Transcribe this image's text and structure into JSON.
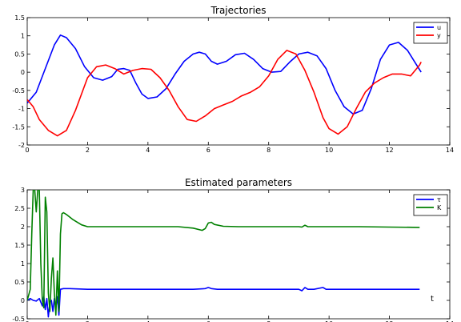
{
  "chart_data": [
    {
      "type": "line",
      "title": "Trajectories",
      "xlabel": "",
      "ylabel": "",
      "xlim": [
        0,
        14
      ],
      "ylim": [
        -2,
        1.5
      ],
      "xticks": [
        "0",
        "2",
        "4",
        "6",
        "8",
        "10",
        "12",
        "14"
      ],
      "yticks": [
        "-2",
        "-1.5",
        "-1",
        "-0.5",
        "0",
        "0.5",
        "1",
        "1.5"
      ],
      "grid": false,
      "legend": "top-right",
      "series": [
        {
          "name": "u",
          "color": "#0000ff",
          "x": [
            0,
            0.3,
            0.6,
            0.9,
            1.1,
            1.3,
            1.6,
            1.9,
            2.2,
            2.5,
            2.8,
            3.0,
            3.2,
            3.4,
            3.6,
            3.8,
            4.0,
            4.3,
            4.6,
            4.9,
            5.2,
            5.5,
            5.7,
            5.9,
            6.1,
            6.3,
            6.6,
            6.9,
            7.2,
            7.5,
            7.8,
            8.1,
            8.4,
            8.7,
            9.0,
            9.3,
            9.6,
            9.9,
            10.2,
            10.5,
            10.8,
            11.1,
            11.4,
            11.7,
            12.0,
            12.3,
            12.6,
            12.9,
            13.05
          ],
          "y": [
            -0.85,
            -0.55,
            0.1,
            0.75,
            1.02,
            0.95,
            0.65,
            0.15,
            -0.15,
            -0.22,
            -0.12,
            0.08,
            0.1,
            0.05,
            -0.3,
            -0.6,
            -0.72,
            -0.68,
            -0.45,
            -0.05,
            0.3,
            0.5,
            0.55,
            0.5,
            0.3,
            0.22,
            0.3,
            0.48,
            0.52,
            0.35,
            0.1,
            0.0,
            0.02,
            0.28,
            0.5,
            0.55,
            0.45,
            0.1,
            -0.5,
            -0.95,
            -1.15,
            -1.05,
            -0.45,
            0.35,
            0.75,
            0.82,
            0.6,
            0.2,
            0.0
          ]
        },
        {
          "name": "y",
          "color": "#ff0000",
          "x": [
            0,
            0.2,
            0.4,
            0.7,
            1.0,
            1.3,
            1.6,
            2.0,
            2.3,
            2.6,
            2.9,
            3.2,
            3.5,
            3.8,
            4.1,
            4.4,
            4.7,
            5.0,
            5.3,
            5.6,
            5.9,
            6.2,
            6.5,
            6.8,
            7.1,
            7.4,
            7.7,
            8.0,
            8.3,
            8.6,
            8.9,
            9.2,
            9.5,
            9.8,
            10.0,
            10.3,
            10.6,
            10.9,
            11.2,
            11.5,
            11.8,
            12.1,
            12.4,
            12.7,
            13.0,
            13.05
          ],
          "y": [
            -0.75,
            -0.95,
            -1.3,
            -1.6,
            -1.75,
            -1.6,
            -1.05,
            -0.15,
            0.15,
            0.2,
            0.1,
            -0.05,
            0.05,
            0.1,
            0.08,
            -0.15,
            -0.5,
            -0.95,
            -1.3,
            -1.35,
            -1.2,
            -1.0,
            -0.9,
            -0.8,
            -0.65,
            -0.55,
            -0.4,
            -0.1,
            0.35,
            0.6,
            0.5,
            0.05,
            -0.55,
            -1.25,
            -1.55,
            -1.7,
            -1.5,
            -1.0,
            -0.55,
            -0.3,
            -0.15,
            -0.05,
            -0.05,
            -0.1,
            0.2,
            0.28
          ]
        }
      ]
    },
    {
      "type": "line",
      "title": "Estimated parameters",
      "xlabel": "",
      "ylabel": "",
      "xlim": [
        0,
        14
      ],
      "ylim": [
        -0.5,
        3
      ],
      "xticks": [
        "0",
        "2",
        "4",
        "6",
        "8",
        "10",
        "12",
        "14"
      ],
      "yticks": [
        "-0.5",
        "0",
        "0.5",
        "1",
        "1.5",
        "2",
        "2.5",
        "3"
      ],
      "grid": false,
      "legend": "top-right",
      "annotation": "t",
      "series": [
        {
          "name": "τ",
          "color": "#0000ff",
          "x": [
            0,
            0.1,
            0.2,
            0.3,
            0.4,
            0.5,
            0.55,
            0.6,
            0.65,
            0.7,
            0.75,
            0.8,
            0.85,
            0.9,
            0.95,
            1.0,
            1.05,
            1.1,
            1.2,
            1.4,
            2.0,
            3.0,
            4.0,
            5.0,
            5.5,
            5.9,
            6.0,
            6.1,
            6.3,
            7.0,
            8.0,
            9.0,
            9.1,
            9.2,
            9.3,
            9.5,
            9.8,
            9.9,
            10.0,
            11.0,
            12.0,
            13.0
          ],
          "y": [
            0.0,
            0.05,
            0.0,
            -0.02,
            0.05,
            -0.15,
            0.1,
            -0.25,
            0.05,
            -0.45,
            -0.05,
            0.0,
            -0.3,
            0.05,
            -0.2,
            0.1,
            -0.4,
            0.3,
            0.32,
            0.32,
            0.3,
            0.3,
            0.3,
            0.3,
            0.3,
            0.32,
            0.35,
            0.32,
            0.3,
            0.3,
            0.3,
            0.3,
            0.26,
            0.35,
            0.3,
            0.3,
            0.35,
            0.3,
            0.3,
            0.3,
            0.3,
            0.3
          ]
        },
        {
          "name": "K",
          "color": "#008000",
          "x": [
            0,
            0.1,
            0.15,
            0.2,
            0.25,
            0.3,
            0.35,
            0.4,
            0.45,
            0.5,
            0.55,
            0.6,
            0.65,
            0.7,
            0.75,
            0.8,
            0.85,
            0.9,
            0.95,
            1.0,
            1.05,
            1.1,
            1.15,
            1.2,
            1.3,
            1.5,
            1.8,
            2.0,
            2.2,
            2.5,
            3.0,
            4.0,
            5.0,
            5.5,
            5.8,
            5.9,
            6.0,
            6.1,
            6.2,
            6.5,
            7.0,
            8.0,
            9.0,
            9.1,
            9.2,
            9.3,
            10.0,
            11.0,
            12.0,
            13.0
          ],
          "y": [
            0.0,
            0.3,
            1.8,
            3.0,
            3.0,
            2.4,
            3.0,
            3.0,
            1.0,
            0.0,
            -0.2,
            2.8,
            2.4,
            0.2,
            -0.3,
            0.6,
            1.15,
            0.2,
            -0.4,
            0.8,
            -0.3,
            1.8,
            2.35,
            2.38,
            2.33,
            2.2,
            2.05,
            2.0,
            2.0,
            2.0,
            2.0,
            2.0,
            2.0,
            1.96,
            1.9,
            1.95,
            2.1,
            2.12,
            2.06,
            2.01,
            2.0,
            2.0,
            2.0,
            1.99,
            2.04,
            2.0,
            2.0,
            2.0,
            1.99,
            1.98
          ]
        }
      ]
    }
  ]
}
